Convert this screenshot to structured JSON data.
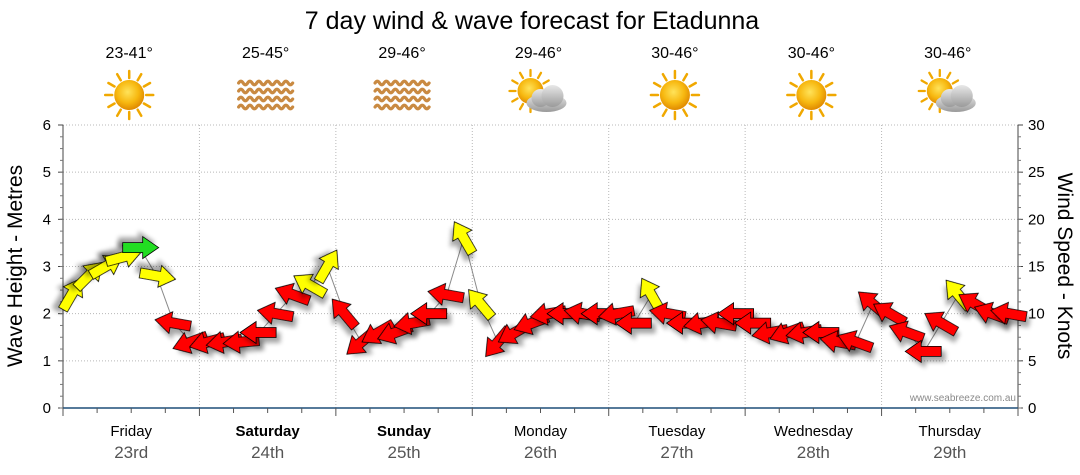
{
  "chart_data": {
    "type": "line",
    "title": "7 day wind & wave forecast for Etadunna",
    "ylabel_left": "Wave Height - Metres",
    "ylabel_right": "Wind Speed - Knots",
    "ylim_left": [
      0,
      6
    ],
    "ylim_right": [
      0,
      30
    ],
    "yticks_left": [
      "0",
      "1",
      "2",
      "3",
      "4",
      "5",
      "6"
    ],
    "yticks_right": [
      "0",
      "5",
      "10",
      "15",
      "20",
      "25",
      "30"
    ],
    "grid": true,
    "watermark": "www.seabreeze.com.au",
    "days": [
      {
        "name": "Friday",
        "date": "23rd",
        "temp": "23-41°",
        "weather": "sunny",
        "bold": false
      },
      {
        "name": "Saturday",
        "date": "24th",
        "temp": "25-45°",
        "weather": "haze",
        "bold": true
      },
      {
        "name": "Sunday",
        "date": "25th",
        "temp": "29-46°",
        "weather": "haze",
        "bold": true
      },
      {
        "name": "Monday",
        "date": "26th",
        "temp": "29-46°",
        "weather": "partly-cloudy",
        "bold": false
      },
      {
        "name": "Tuesday",
        "date": "27th",
        "temp": "30-46°",
        "weather": "sunny",
        "bold": false
      },
      {
        "name": "Wednesday",
        "date": "28th",
        "temp": "30-46°",
        "weather": "sunny",
        "bold": false
      },
      {
        "name": "Thursday",
        "date": "29th",
        "temp": "30-46°",
        "weather": "partly-cloudy",
        "bold": false
      }
    ],
    "wind_series": {
      "name": "Wind Speed (knots)",
      "hours": [
        0,
        3,
        6,
        9,
        12,
        15,
        18,
        21,
        24,
        27,
        30,
        33,
        36,
        39,
        42,
        45,
        48,
        51,
        54,
        57,
        60,
        63,
        66,
        69,
        72,
        75,
        78,
        81,
        84,
        87,
        90,
        93,
        96,
        99,
        102,
        105,
        108,
        111,
        114,
        117,
        120,
        123,
        126,
        129,
        132,
        135,
        138,
        141,
        144,
        147,
        150,
        153,
        156,
        159,
        162,
        165
      ],
      "speed": [
        12,
        14,
        15,
        16,
        17,
        14,
        9,
        7,
        7,
        7,
        7,
        8,
        10,
        12,
        13,
        15,
        10,
        7,
        8,
        8,
        9,
        10,
        12,
        18,
        11,
        7,
        8,
        9,
        10,
        10,
        10,
        10,
        10,
        9,
        12,
        10,
        9,
        9,
        9,
        10,
        9,
        8,
        8,
        8,
        8,
        7,
        7,
        11,
        10,
        8,
        6,
        9,
        12,
        11,
        10,
        10
      ],
      "direction_deg": [
        30,
        45,
        60,
        75,
        90,
        100,
        280,
        250,
        255,
        260,
        265,
        270,
        280,
        290,
        300,
        30,
        320,
        230,
        240,
        250,
        260,
        270,
        280,
        330,
        320,
        220,
        240,
        250,
        260,
        270,
        280,
        270,
        260,
        270,
        330,
        280,
        270,
        260,
        280,
        270,
        270,
        260,
        250,
        260,
        270,
        280,
        290,
        310,
        300,
        290,
        270,
        300,
        320,
        300,
        290,
        280
      ],
      "color": [
        "yellow",
        "yellow",
        "yellow",
        "yellow",
        "green",
        "yellow",
        "red",
        "red",
        "red",
        "red",
        "red",
        "red",
        "red",
        "red",
        "yellow",
        "yellow",
        "red",
        "red",
        "red",
        "red",
        "red",
        "red",
        "red",
        "yellow",
        "yellow",
        "red",
        "red",
        "red",
        "red",
        "red",
        "red",
        "red",
        "red",
        "red",
        "yellow",
        "red",
        "red",
        "red",
        "red",
        "red",
        "red",
        "red",
        "red",
        "red",
        "red",
        "red",
        "red",
        "red",
        "red",
        "red",
        "red",
        "red",
        "yellow",
        "red",
        "red",
        "red"
      ]
    }
  }
}
